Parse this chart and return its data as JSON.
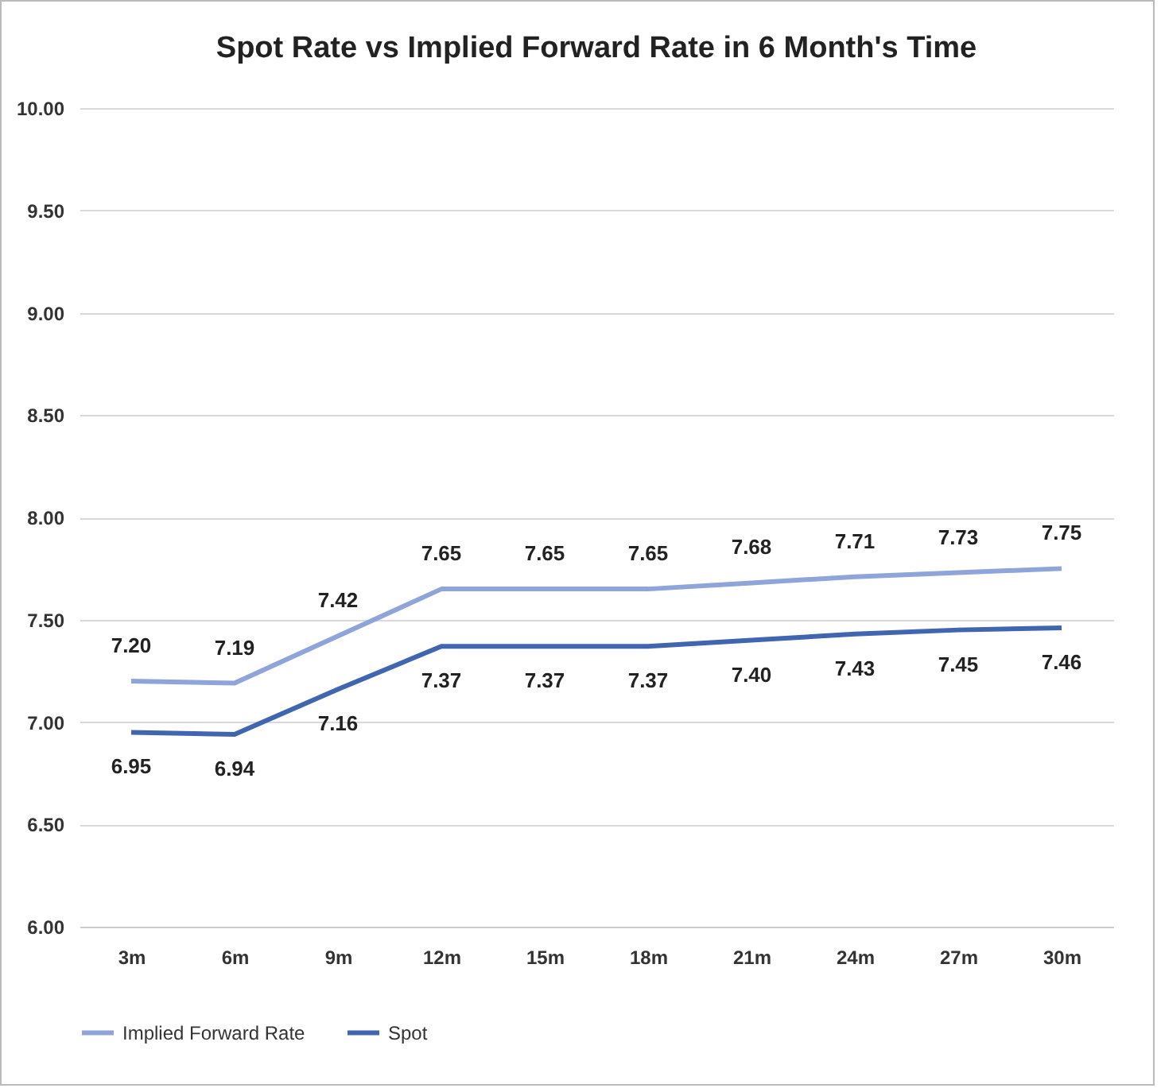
{
  "chart_data": {
    "type": "line",
    "title": "Spot Rate vs Implied Forward Rate in 6 Month's Time",
    "categories": [
      "3m",
      "6m",
      "9m",
      "12m",
      "15m",
      "18m",
      "21m",
      "24m",
      "27m",
      "30m"
    ],
    "series": [
      {
        "name": "Implied Forward Rate",
        "color": "#8fa5da",
        "values": [
          7.2,
          7.19,
          7.42,
          7.65,
          7.65,
          7.65,
          7.68,
          7.71,
          7.73,
          7.75
        ],
        "value_labels": [
          "7.20",
          "7.19",
          "7.42",
          "7.65",
          "7.65",
          "7.65",
          "7.68",
          "7.71",
          "7.73",
          "7.75"
        ]
      },
      {
        "name": "Spot",
        "color": "#4166b0",
        "values": [
          6.95,
          6.94,
          7.16,
          7.37,
          7.37,
          7.37,
          7.4,
          7.43,
          7.45,
          7.46
        ],
        "value_labels": [
          "6.95",
          "6.94",
          "7.16",
          "7.37",
          "7.37",
          "7.37",
          "7.40",
          "7.43",
          "7.45",
          "7.46"
        ]
      }
    ],
    "ylim": [
      6,
      10
    ],
    "yticks": [
      {
        "value": 6,
        "label": "6.00"
      },
      {
        "value": 6.5,
        "label": "6.50"
      },
      {
        "value": 7,
        "label": "7.00"
      },
      {
        "value": 7.5,
        "label": "7.50"
      },
      {
        "value": 8,
        "label": "8.00"
      },
      {
        "value": 8.5,
        "label": "8.50"
      },
      {
        "value": 9,
        "label": "9.00"
      },
      {
        "value": 9.5,
        "label": "9.50"
      },
      {
        "value": 10,
        "label": "10.00"
      }
    ],
    "grid": "y",
    "legend": "bottom"
  }
}
